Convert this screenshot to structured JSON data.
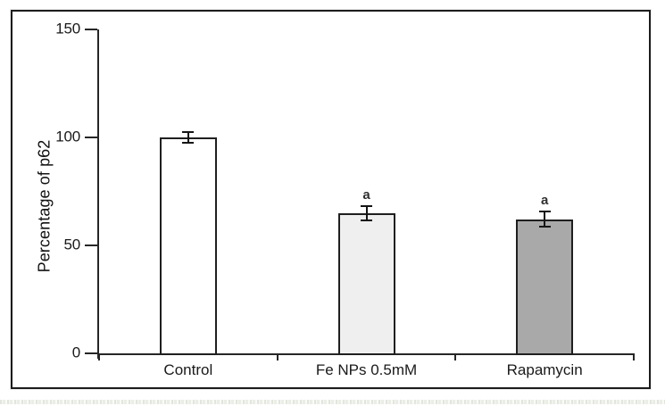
{
  "figure": {
    "border_color": "#1c1c1c",
    "background": "#ffffff"
  },
  "chart_data": {
    "type": "bar",
    "title": "",
    "ylabel": "Percentage of p62",
    "xlabel": "",
    "ylim": [
      0,
      150
    ],
    "yticks": [
      0,
      50,
      100,
      150
    ],
    "categories": [
      "Control",
      "Fe NPs 0.5mM",
      "Rapamycin"
    ],
    "values": [
      100,
      65,
      62
    ],
    "errors": [
      2.5,
      3.3,
      3.5
    ],
    "annotations": [
      "",
      "a",
      "a"
    ],
    "bar_fill_colors": [
      "#ffffff",
      "#efefef",
      "#a9a9a9"
    ],
    "bar_border_color": "#1f1f1f",
    "axis_color": "#262626",
    "grid": false,
    "legend": null
  }
}
